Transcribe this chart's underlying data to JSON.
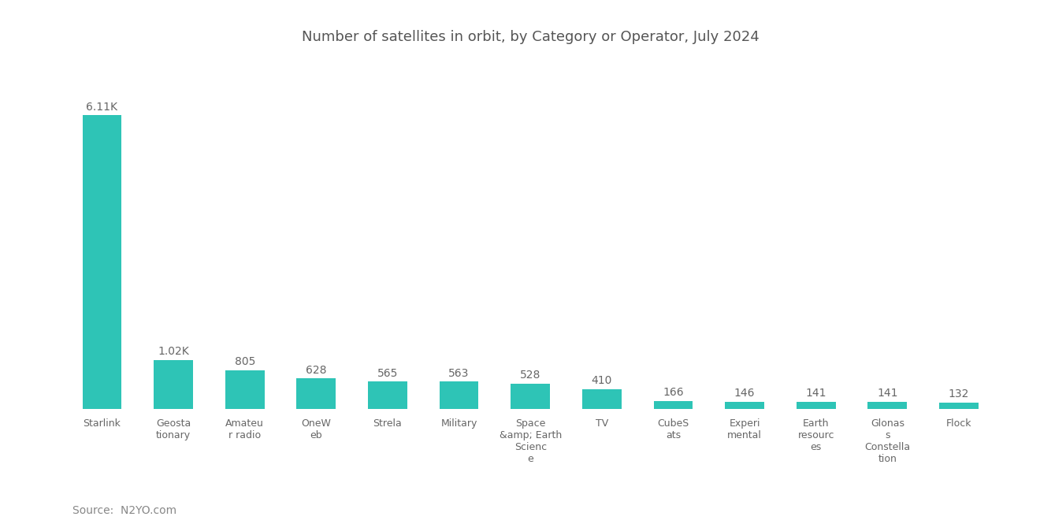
{
  "title": "Number of satellites in orbit, by Category or Operator, July 2024",
  "values": [
    6110,
    1020,
    805,
    628,
    565,
    563,
    528,
    410,
    166,
    146,
    141,
    141,
    132
  ],
  "value_labels": [
    "6.11K",
    "1.02K",
    "805",
    "628",
    "565",
    "563",
    "528",
    "410",
    "166",
    "146",
    "141",
    "141",
    "132"
  ],
  "x_labels": [
    "Starlink",
    "Geosta\ntionary",
    "Amateu\nr radio",
    "OneW\neb",
    "Strela",
    "Military",
    "Space\n&amp; Earth\nScienc\ne",
    "TV",
    "CubeS\nats",
    "Experi\nmental",
    "Earth\nresourc\nes",
    "Glonas\ns\nConstella\ntion",
    "Flock"
  ],
  "bar_color": "#2ec4b6",
  "background_color": "#ffffff",
  "title_color": "#555555",
  "source_text": "Source:  N2YO.com",
  "source_color": "#888888",
  "ylim": [
    0,
    7200
  ],
  "bar_width": 0.55
}
